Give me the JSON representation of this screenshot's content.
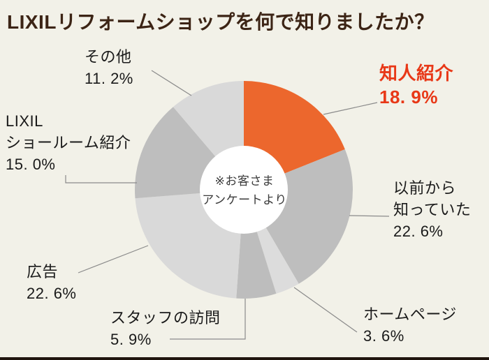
{
  "title": "LIXILリフォームショップを何で知りましたか？",
  "center_note": {
    "line1": "※お客さま",
    "line2": "アンケートより"
  },
  "colors": {
    "background": "#F2F1E8",
    "title_text": "#3C2415",
    "highlight_label": "#E83817",
    "label_text": "#1A1A1A",
    "leader_line": "#8A8A8A",
    "donut_hole": "#FFFFFF",
    "highlight_slice": "#EC672D",
    "gray_slice_medium": "#BEBEBE",
    "gray_slice_light": "#D9D9D9",
    "bottom_bar": "#20150E"
  },
  "chart_data": {
    "type": "pie",
    "donut": true,
    "title": "LIXILリフォームショップを何で知りましたか？",
    "source_note": "※お客さまアンケートより",
    "start_angle_deg": 0,
    "direction": "clockwise",
    "legend_position": "outside-labels",
    "segments": [
      {
        "name": "知人紹介",
        "name_lines": [
          "知人紹介"
        ],
        "value": 18.9,
        "display": "18. 9%",
        "color": "#EC672D",
        "highlight": true
      },
      {
        "name": "以前から知っていた",
        "name_lines": [
          "以前から",
          "知っていた"
        ],
        "value": 22.6,
        "display": "22. 6%",
        "color": "#BEBEBE",
        "highlight": false
      },
      {
        "name": "ホームページ",
        "name_lines": [
          "ホームページ"
        ],
        "value": 3.6,
        "display": "3. 6%",
        "color": "#DCDCDC",
        "highlight": false
      },
      {
        "name": "スタッフの訪問",
        "name_lines": [
          "スタッフの訪問"
        ],
        "value": 5.9,
        "display": "5. 9%",
        "color": "#BDBDBD",
        "highlight": false
      },
      {
        "name": "広告",
        "name_lines": [
          "広告"
        ],
        "value": 22.6,
        "display": "22. 6%",
        "color": "#D9D9D9",
        "highlight": false
      },
      {
        "name": "LIXILショールーム紹介",
        "name_lines": [
          "LIXIL",
          "ショールーム紹介"
        ],
        "value": 15.0,
        "display": "15. 0%",
        "color": "#BEBEBE",
        "highlight": false
      },
      {
        "name": "その他",
        "name_lines": [
          "その他"
        ],
        "value": 11.2,
        "display": "11. 2%",
        "color": "#D9D9D9",
        "highlight": false
      }
    ]
  }
}
